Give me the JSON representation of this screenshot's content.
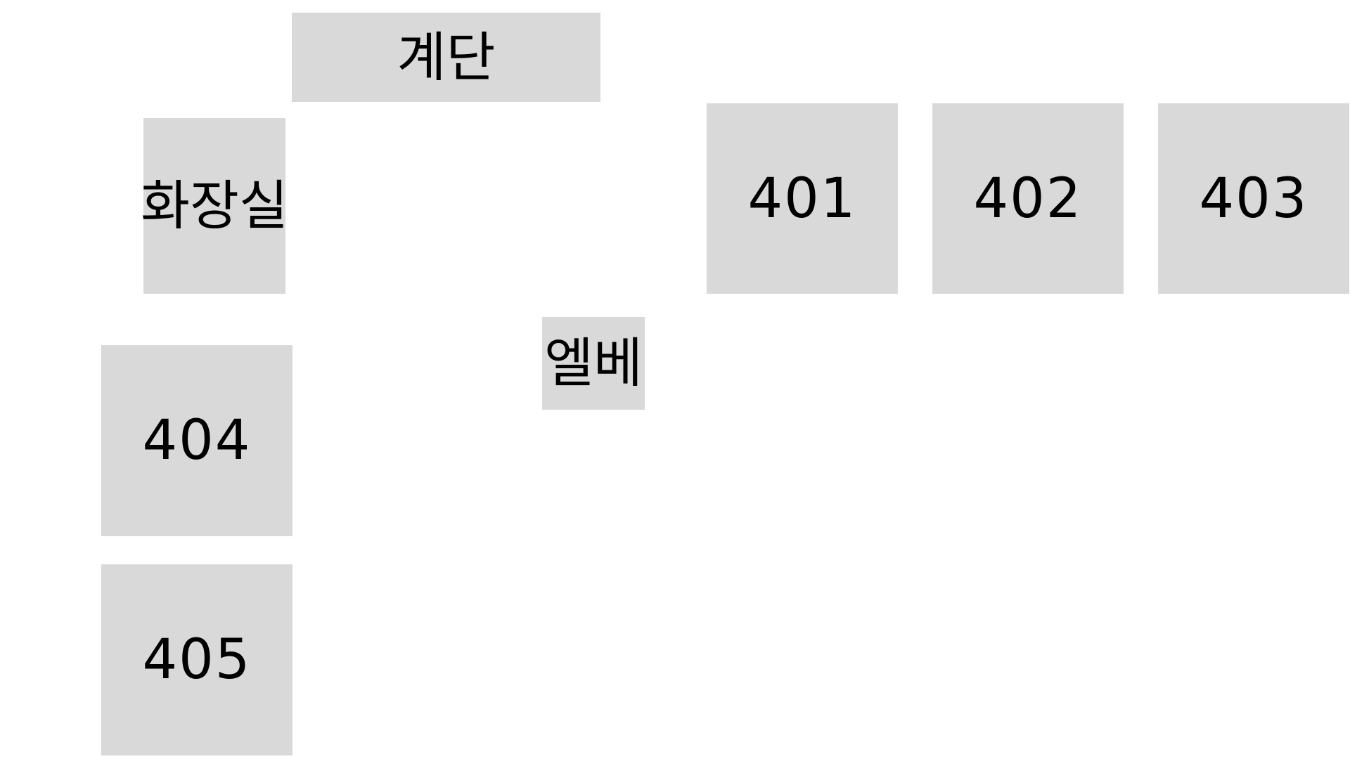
{
  "floor_plan": {
    "stairs": {
      "label": "계단"
    },
    "restroom": {
      "label": "화장실"
    },
    "elevator": {
      "label": "엘베"
    },
    "rooms": [
      {
        "label": "401"
      },
      {
        "label": "402"
      },
      {
        "label": "403"
      },
      {
        "label": "404"
      },
      {
        "label": "405"
      }
    ]
  },
  "colors": {
    "background": "#ffffff",
    "block_fill": "#d9d9d9",
    "text": "#000000"
  }
}
